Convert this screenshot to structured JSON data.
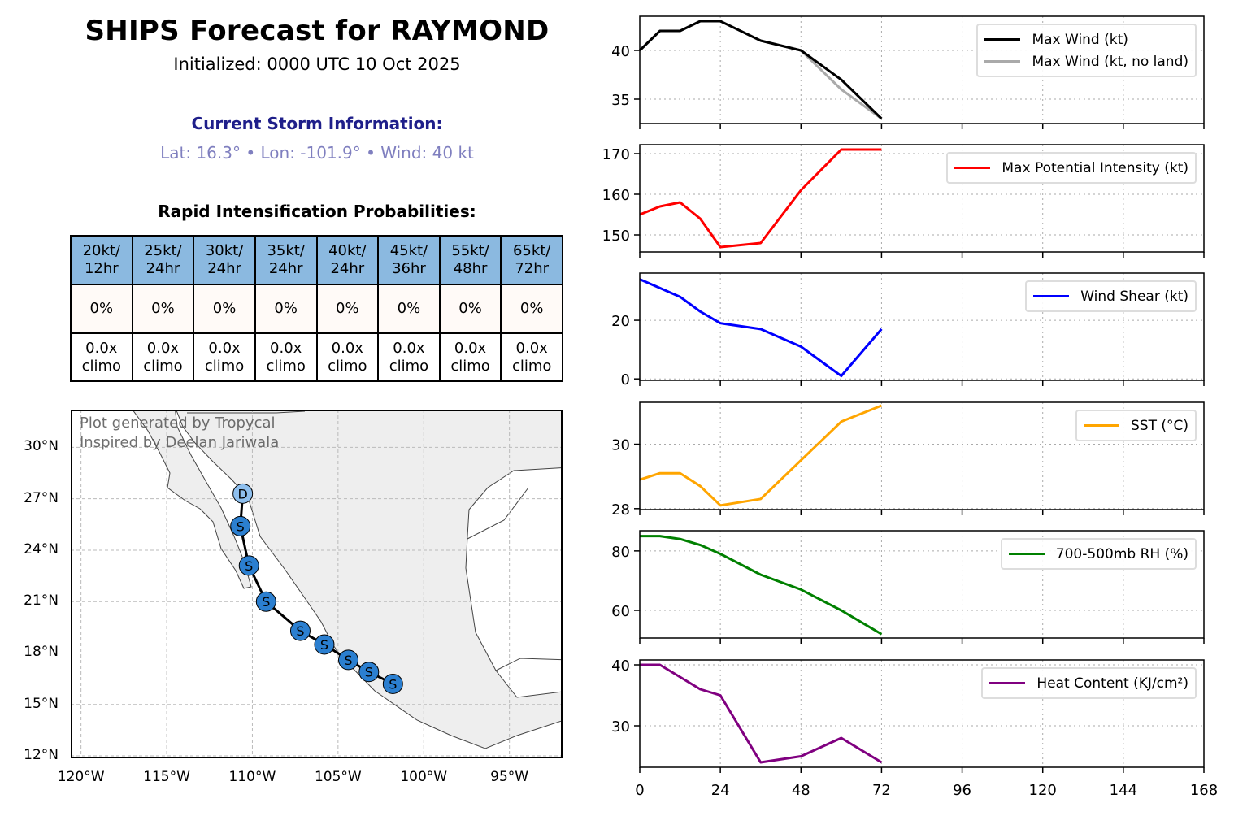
{
  "header": {
    "title": "SHIPS Forecast for RAYMOND",
    "initialized": "Initialized: 0000 UTC 10 Oct 2025",
    "current_heading": "Current Storm Information:",
    "current_values": "Lat: 16.3° • Lon: -101.9° • Wind: 40 kt",
    "ri_heading": "Rapid Intensification Probabilities:"
  },
  "ri_table": {
    "columns": [
      {
        "l1": "20kt/",
        "l2": "12hr",
        "prob": "0%",
        "c1": "0.0x",
        "c2": "climo"
      },
      {
        "l1": "25kt/",
        "l2": "24hr",
        "prob": "0%",
        "c1": "0.0x",
        "c2": "climo"
      },
      {
        "l1": "30kt/",
        "l2": "24hr",
        "prob": "0%",
        "c1": "0.0x",
        "c2": "climo"
      },
      {
        "l1": "35kt/",
        "l2": "24hr",
        "prob": "0%",
        "c1": "0.0x",
        "c2": "climo"
      },
      {
        "l1": "40kt/",
        "l2": "24hr",
        "prob": "0%",
        "c1": "0.0x",
        "c2": "climo"
      },
      {
        "l1": "45kt/",
        "l2": "36hr",
        "prob": "0%",
        "c1": "0.0x",
        "c2": "climo"
      },
      {
        "l1": "55kt/",
        "l2": "48hr",
        "prob": "0%",
        "c1": "0.0x",
        "c2": "climo"
      },
      {
        "l1": "65kt/",
        "l2": "72hr",
        "prob": "0%",
        "c1": "0.0x",
        "c2": "climo"
      }
    ],
    "header_color": "#8bb9e0"
  },
  "map": {
    "credit_1": "Plot generated by Tropycal",
    "credit_2": "Inspired by Deelan Jariwala",
    "lon_range": [
      -120.6,
      -91.9
    ],
    "lat_range": [
      11.86,
      32.2
    ],
    "lon_ticks": [
      {
        "v": -120,
        "label": "120°W"
      },
      {
        "v": -115,
        "label": "115°W"
      },
      {
        "v": -110,
        "label": "110°W"
      },
      {
        "v": -105,
        "label": "105°W"
      },
      {
        "v": -100,
        "label": "100°W"
      },
      {
        "v": -95,
        "label": "95°W"
      }
    ],
    "lat_ticks": [
      {
        "v": 30,
        "label": "30°N"
      },
      {
        "v": 27,
        "label": "27°N"
      },
      {
        "v": 24,
        "label": "24°N"
      },
      {
        "v": 21,
        "label": "21°N"
      },
      {
        "v": 18,
        "label": "18°N"
      },
      {
        "v": 15,
        "label": "15°N"
      },
      {
        "v": 12,
        "label": "12°N"
      }
    ],
    "track": [
      {
        "lon": -101.8,
        "lat": 16.2,
        "type": "S"
      },
      {
        "lon": -103.2,
        "lat": 16.9,
        "type": "S"
      },
      {
        "lon": -104.4,
        "lat": 17.6,
        "type": "S"
      },
      {
        "lon": -105.8,
        "lat": 18.5,
        "type": "S"
      },
      {
        "lon": -107.2,
        "lat": 19.3,
        "type": "S"
      },
      {
        "lon": -109.2,
        "lat": 21.0,
        "type": "S"
      },
      {
        "lon": -110.2,
        "lat": 23.1,
        "type": "S"
      },
      {
        "lon": -110.7,
        "lat": 25.4,
        "type": "S"
      },
      {
        "lon": -110.56,
        "lat": 27.3,
        "type": "D"
      }
    ],
    "colors": {
      "S": "#2b7fd0",
      "D": "#8ebfee",
      "land": "#eeeeee"
    }
  },
  "chart_data": [
    {
      "type": "line",
      "x": [
        0,
        6,
        12,
        18,
        24,
        36,
        48,
        60,
        72
      ],
      "ylim": [
        32.5,
        43.5
      ],
      "yticks": [
        35,
        40
      ],
      "series": [
        {
          "name": "Max Wind (kt)",
          "color": "#000000",
          "values": [
            40,
            42,
            42,
            43,
            43,
            41,
            40,
            37,
            33
          ]
        },
        {
          "name": "Max Wind (kt, no land)",
          "color": "#aaaaaa",
          "values": [
            40,
            42,
            42,
            43,
            43,
            41,
            40,
            36,
            33
          ]
        }
      ]
    },
    {
      "type": "line",
      "x": [
        0,
        6,
        12,
        18,
        24,
        36,
        48,
        60,
        72
      ],
      "ylim": [
        145.8,
        172.2
      ],
      "yticks": [
        150,
        160,
        170
      ],
      "series": [
        {
          "name": "Max Potential Intensity (kt)",
          "color": "#ff0000",
          "values": [
            155,
            157,
            158,
            154,
            147,
            148,
            161,
            171,
            171
          ]
        }
      ]
    },
    {
      "type": "line",
      "x": [
        0,
        6,
        12,
        18,
        24,
        36,
        48,
        60,
        72
      ],
      "ylim": [
        -0.5,
        36.1
      ],
      "yticks": [
        0,
        20
      ],
      "series": [
        {
          "name": "Wind Shear (kt)",
          "color": "#0000ff",
          "values": [
            34,
            31,
            28,
            23,
            19,
            17,
            11,
            1,
            17
          ]
        }
      ]
    },
    {
      "type": "line",
      "x": [
        0,
        6,
        12,
        18,
        24,
        36,
        48,
        60,
        72
      ],
      "ylim": [
        27.97,
        31.3
      ],
      "yticks": [
        28,
        30
      ],
      "series": [
        {
          "name": "SST (°C)",
          "color": "#ffa500",
          "values": [
            28.9,
            29.1,
            29.1,
            28.7,
            28.1,
            28.3,
            29.5,
            30.7,
            31.2
          ]
        }
      ]
    },
    {
      "type": "line",
      "x": [
        0,
        6,
        12,
        18,
        24,
        36,
        48,
        60,
        72
      ],
      "ylim": [
        50.7,
        86.8
      ],
      "yticks": [
        60,
        80
      ],
      "series": [
        {
          "name": "700-500mb RH (%)",
          "color": "#008000",
          "values": [
            85,
            85,
            84,
            82,
            79,
            72,
            67,
            60,
            52
          ]
        }
      ]
    },
    {
      "type": "line",
      "x": [
        0,
        6,
        12,
        18,
        24,
        36,
        48,
        60,
        72
      ],
      "ylim": [
        23.2,
        40.8
      ],
      "yticks": [
        30,
        40
      ],
      "series": [
        {
          "name": "Heat Content (KJ/cm²)",
          "color": "#800080",
          "values": [
            40,
            40,
            38,
            36,
            35,
            24,
            25,
            28,
            24
          ]
        }
      ]
    }
  ],
  "x_axis": {
    "xlim": [
      0,
      168
    ],
    "ticks": [
      0,
      24,
      48,
      72,
      96,
      120,
      144,
      168
    ]
  }
}
